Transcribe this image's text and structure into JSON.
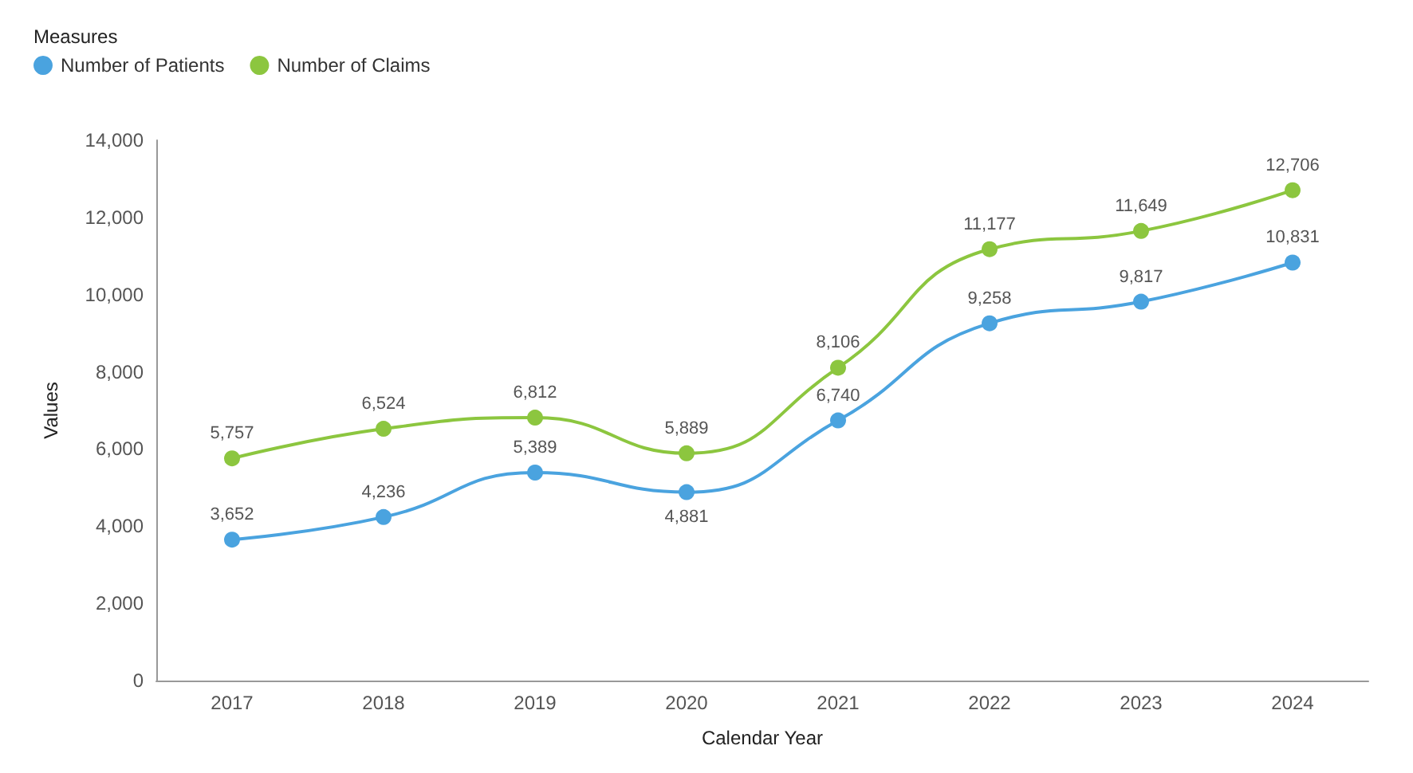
{
  "chart_data": {
    "type": "line",
    "legend_title": "Measures",
    "xlabel": "Calendar Year",
    "ylabel": "Values",
    "categories": [
      "2017",
      "2018",
      "2019",
      "2020",
      "2021",
      "2022",
      "2023",
      "2024"
    ],
    "series": [
      {
        "name": "Number of Patients",
        "color": "#4aa3df",
        "values": [
          3652,
          4236,
          5389,
          4881,
          6740,
          9258,
          9817,
          10831
        ],
        "value_labels": [
          "3,652",
          "4,236",
          "5,389",
          "4,881",
          "6,740",
          "9,258",
          "9,817",
          "10,831"
        ]
      },
      {
        "name": "Number of Claims",
        "color": "#8cc63f",
        "values": [
          5757,
          6524,
          6812,
          5889,
          8106,
          11177,
          11649,
          12706
        ],
        "value_labels": [
          "5,757",
          "6,524",
          "6,812",
          "5,889",
          "8,106",
          "11,177",
          "11,649",
          "12,706"
        ]
      }
    ],
    "ylim": [
      0,
      14000
    ],
    "yticks": [
      {
        "value": 0,
        "label": "0"
      },
      {
        "value": 2000,
        "label": "2,000"
      },
      {
        "value": 4000,
        "label": "4,000"
      },
      {
        "value": 6000,
        "label": "6,000"
      },
      {
        "value": 8000,
        "label": "8,000"
      },
      {
        "value": 10000,
        "label": "10,000"
      },
      {
        "value": 12000,
        "label": "12,000"
      },
      {
        "value": 14000,
        "label": "14,000"
      }
    ],
    "grid": false,
    "legend": "top left",
    "marker": "circle",
    "line_style": "solid"
  }
}
